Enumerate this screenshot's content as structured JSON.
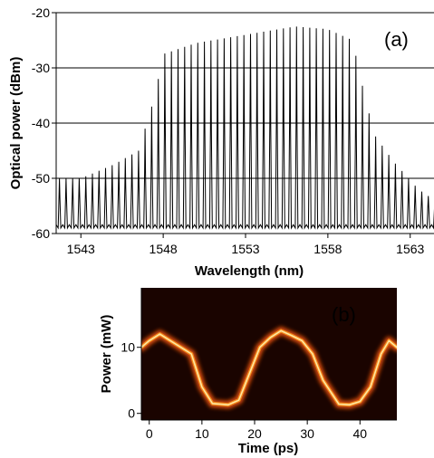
{
  "chart_data": [
    {
      "type": "line",
      "panel_label": "(a)",
      "xlabel": "Wavelength (nm)",
      "ylabel": "Optical power (dBm)",
      "xlim": [
        1541.5,
        1564.5
      ],
      "ylim": [
        -60,
        -20
      ],
      "x_ticks": [
        "1543",
        "1548",
        "1553",
        "1558",
        "1563"
      ],
      "y_ticks": [
        "-20",
        "-30",
        "-40",
        "-50",
        "-60"
      ],
      "grid": "horizontal",
      "comb_spacing_nm": 0.4,
      "floor_dBm": -59,
      "envelope": {
        "x": [
          1541.5,
          1543,
          1545,
          1546.5,
          1547.5,
          1548,
          1550,
          1553,
          1556,
          1558,
          1559.5,
          1560,
          1560.8,
          1562,
          1563.5,
          1564.5
        ],
        "y": [
          -50,
          -50,
          -47.5,
          -45,
          -35,
          -27.5,
          -25.5,
          -24,
          -22.5,
          -23,
          -25,
          -32,
          -42,
          -47,
          -52,
          -54
        ]
      }
    },
    {
      "type": "heatmap",
      "panel_label": "(b)",
      "xlabel": "Time (ps)",
      "ylabel": "Power (mW)",
      "xlim": [
        -1.5,
        47
      ],
      "ylim": [
        -1,
        19
      ],
      "x_ticks": [
        "0",
        "10",
        "20",
        "30",
        "40"
      ],
      "y_ticks": [
        "0",
        "10"
      ],
      "trace": {
        "t": [
          -1.5,
          0,
          2,
          4,
          6,
          8,
          10,
          12,
          15,
          17,
          19,
          21,
          23,
          25,
          27,
          29,
          31,
          33,
          36,
          38,
          40,
          42,
          44,
          45.5,
          47
        ],
        "p": [
          10,
          11,
          12,
          11,
          10,
          9,
          4,
          1.5,
          1.3,
          2,
          6,
          10,
          11.5,
          12.5,
          11.8,
          11,
          9,
          5,
          1.4,
          1.3,
          1.8,
          4,
          9,
          11,
          10
        ]
      },
      "colors": {
        "background": "#1a0400",
        "trace_core": "#ffe6a0",
        "trace_glow": "#d34a0a",
        "label": "#f4e100"
      }
    }
  ]
}
